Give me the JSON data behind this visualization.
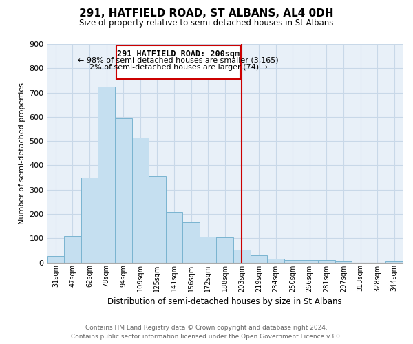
{
  "title": "291, HATFIELD ROAD, ST ALBANS, AL4 0DH",
  "subtitle": "Size of property relative to semi-detached houses in St Albans",
  "xlabel": "Distribution of semi-detached houses by size in St Albans",
  "ylabel": "Number of semi-detached properties",
  "bin_labels": [
    "31sqm",
    "47sqm",
    "62sqm",
    "78sqm",
    "94sqm",
    "109sqm",
    "125sqm",
    "141sqm",
    "156sqm",
    "172sqm",
    "188sqm",
    "203sqm",
    "219sqm",
    "234sqm",
    "250sqm",
    "266sqm",
    "281sqm",
    "297sqm",
    "313sqm",
    "328sqm",
    "344sqm"
  ],
  "bar_values": [
    28,
    108,
    350,
    725,
    593,
    514,
    357,
    209,
    165,
    105,
    103,
    52,
    30,
    15,
    10,
    10,
    10,
    5,
    0,
    0,
    5
  ],
  "bar_color": "#c5dff0",
  "bar_edge_color": "#7ab4d0",
  "highlight_line_color": "#cc0000",
  "annotation_title": "291 HATFIELD ROAD: 200sqm",
  "annotation_line1": "← 98% of semi-detached houses are smaller (3,165)",
  "annotation_line2": "2% of semi-detached houses are larger (74) →",
  "annotation_box_color": "#ffffff",
  "annotation_box_edge": "#cc0000",
  "ylim": [
    0,
    900
  ],
  "yticks": [
    0,
    100,
    200,
    300,
    400,
    500,
    600,
    700,
    800,
    900
  ],
  "footer_line1": "Contains HM Land Registry data © Crown copyright and database right 2024.",
  "footer_line2": "Contains public sector information licensed under the Open Government Licence v3.0.",
  "bg_color": "#ffffff",
  "grid_color": "#c8d8e8"
}
